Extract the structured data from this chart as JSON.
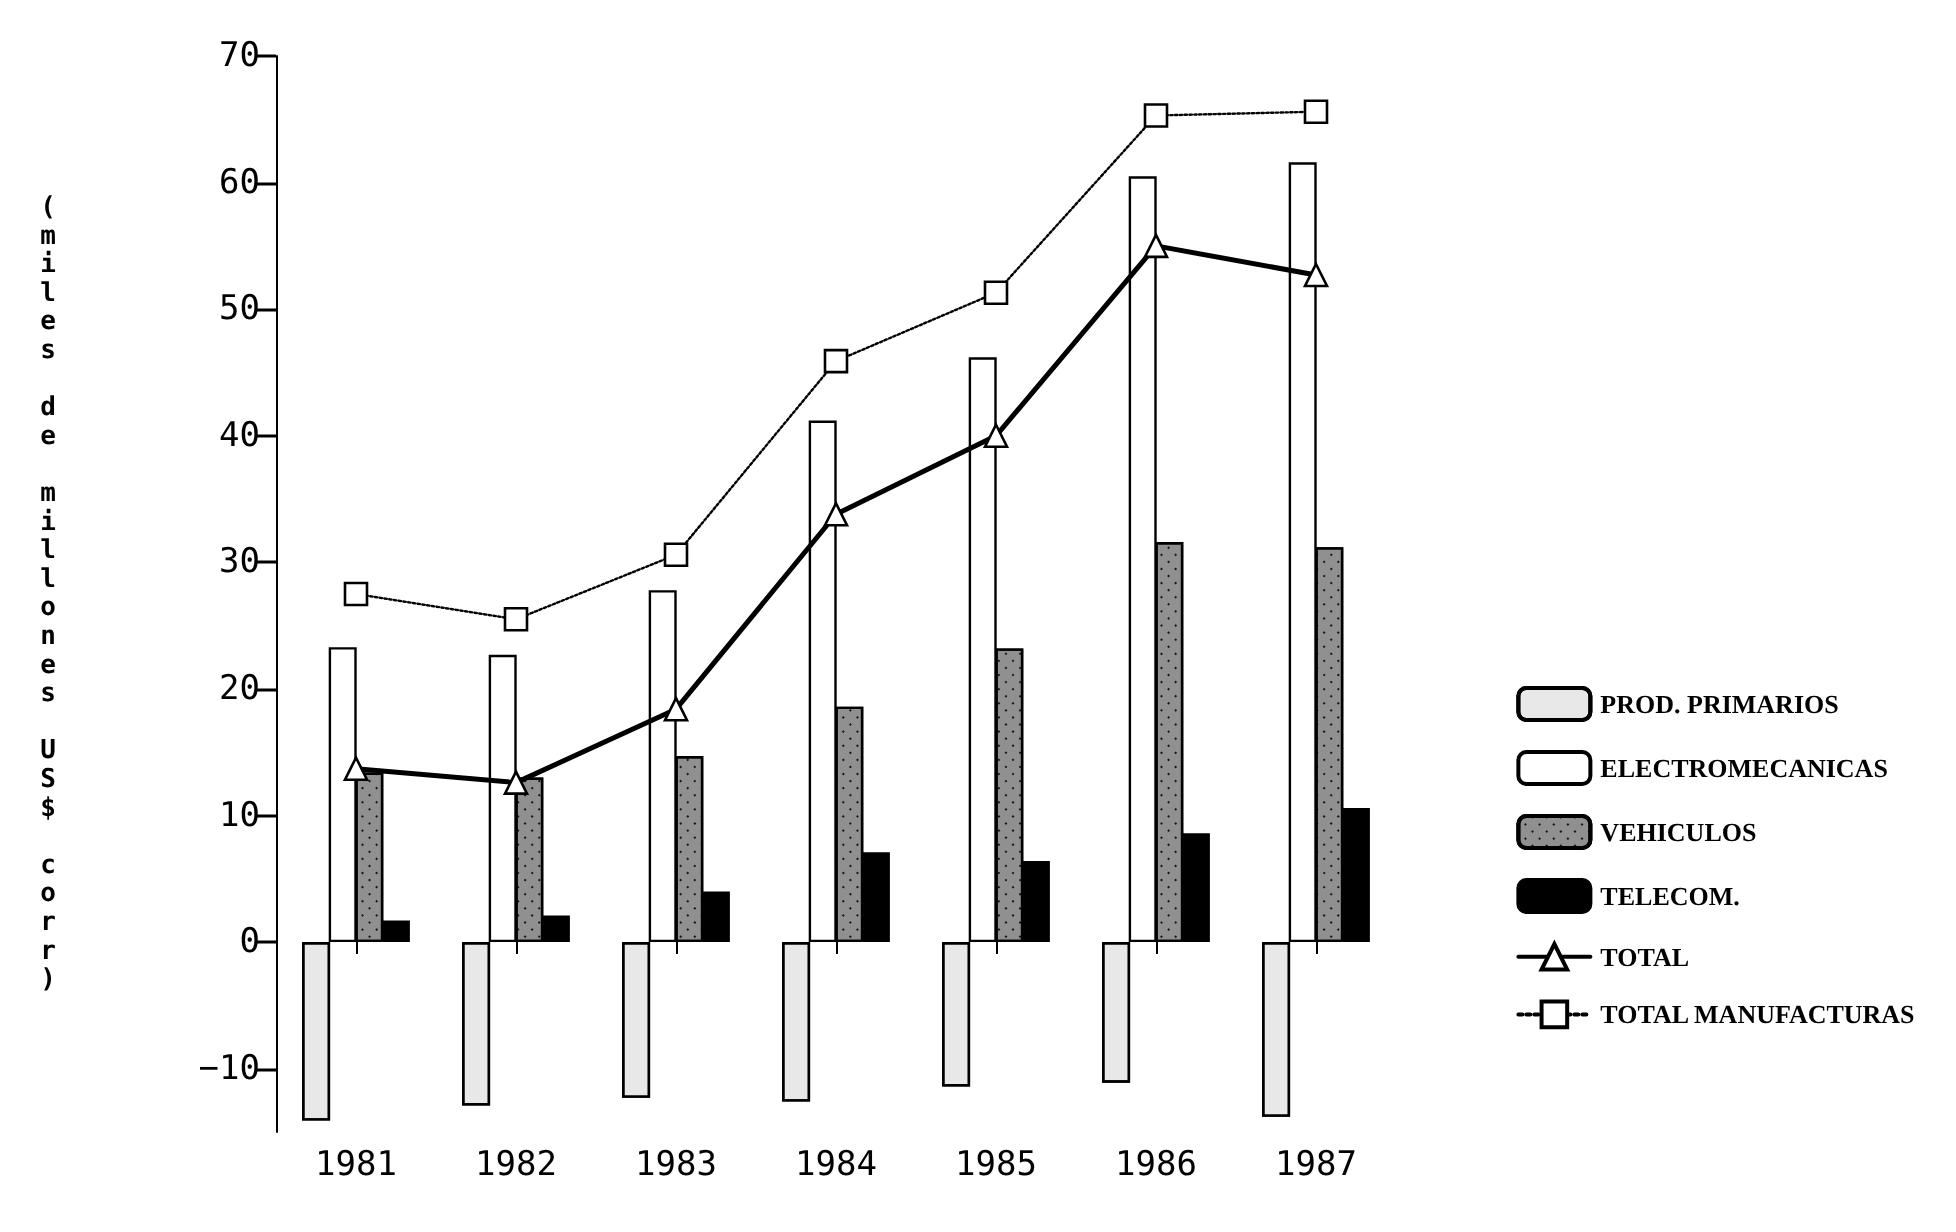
{
  "chart_data": {
    "type": "bar",
    "ylabel": "(miles de millones US$ corr)",
    "ylim": [
      -15,
      70
    ],
    "categories": [
      "1981",
      "1982",
      "1983",
      "1984",
      "1985",
      "1986",
      "1987"
    ],
    "yticks": [
      -10,
      0,
      10,
      20,
      30,
      40,
      50,
      60,
      70
    ],
    "grid": false,
    "legend": "right",
    "series": [
      {
        "name": "PROD. PRIMARIOS",
        "color": "#e8e8e8",
        "values": [
          -14.1,
          -12.9,
          -12.3,
          -12.6,
          -11.4,
          -11.1,
          -13.8
        ]
      },
      {
        "name": "ELECTROMECANICAS",
        "color": "#ffffff",
        "values": [
          23.3,
          22.7,
          27.8,
          41.2,
          46.2,
          60.5,
          61.6
        ]
      },
      {
        "name": "VEHICULOS",
        "color": "#909090",
        "values": [
          13.4,
          13.0,
          14.7,
          18.6,
          23.2,
          31.6,
          31.2
        ]
      },
      {
        "name": "TELECOM.",
        "color": "#000000",
        "values": [
          1.7,
          2.1,
          4.0,
          7.1,
          6.4,
          8.6,
          10.6
        ]
      },
      {
        "name": "TOTAL",
        "type": "line",
        "color": "#000000",
        "marker": "triangle",
        "line_style": "solid",
        "values": [
          13.7,
          12.6,
          18.4,
          33.8,
          40.0,
          55.0,
          52.7
        ]
      },
      {
        "name": "TOTAL MANUFACTURAS",
        "type": "line",
        "color": "#000000",
        "marker": "square",
        "line_style": "dotted",
        "values": [
          27.5,
          25.5,
          30.6,
          45.9,
          51.3,
          65.3,
          65.6
        ]
      }
    ]
  }
}
